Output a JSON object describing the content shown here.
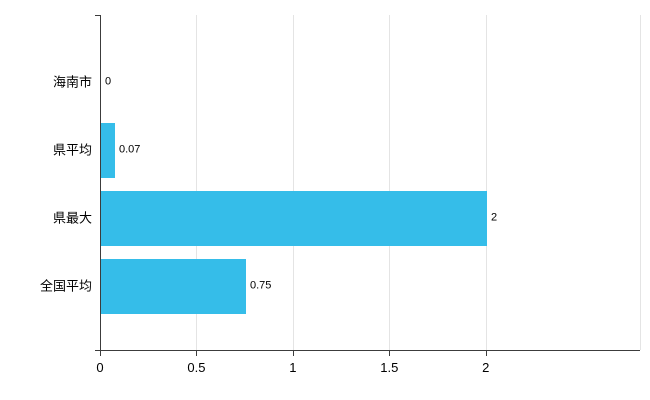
{
  "chart_data": {
    "type": "bar",
    "orientation": "horizontal",
    "title": "",
    "categories": [
      "海南市",
      "県平均",
      "県最大",
      "全国平均"
    ],
    "values": [
      0,
      0.07,
      2,
      0.75
    ],
    "value_labels": [
      "0",
      "0.07",
      "2",
      "0.75"
    ],
    "xlabel": "",
    "ylabel": "",
    "xlim": [
      0,
      2.8
    ],
    "xticks": [
      0,
      0.5,
      1,
      1.5,
      2
    ],
    "xtick_labels": [
      "0",
      "0.5",
      "1",
      "1.5",
      "2"
    ],
    "grid": true,
    "legend_position": "none",
    "colors": {
      "bar": "#35bde9",
      "axis": "#3c3c3c",
      "grid": "#e4e4e4",
      "text": "#000000",
      "background": "#ffffff"
    }
  }
}
